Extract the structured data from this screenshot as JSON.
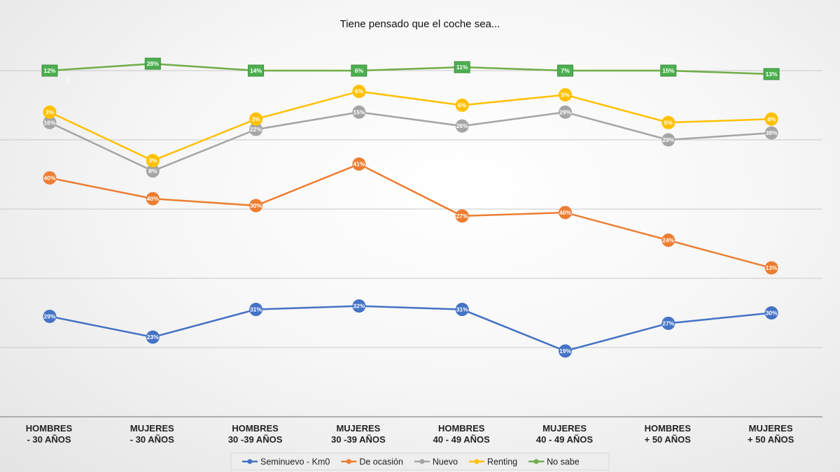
{
  "chart_data": {
    "type": "line",
    "stacked": true,
    "title": "Tiene pensado que el coche sea...",
    "categories": [
      [
        "HOMBRES",
        "- 30 AÑOS"
      ],
      [
        "MUJERES",
        "- 30 AÑOS"
      ],
      [
        "HOMBRES",
        "30 -39 AÑOS"
      ],
      [
        "MUJERES",
        "30 -39 AÑOS"
      ],
      [
        "HOMBRES",
        "40 - 49 AÑOS"
      ],
      [
        "MUJERES",
        "40 - 49 AÑOS"
      ],
      [
        "HOMBRES",
        "+ 50 AÑOS"
      ],
      [
        "MUJERES",
        "+ 50 AÑOS"
      ]
    ],
    "ylim": [
      0,
      100
    ],
    "yticks": [
      0,
      20,
      40,
      60,
      80,
      100
    ],
    "grid": true,
    "legend_position": "bottom",
    "series": [
      {
        "name": "Seminuevo - Km0",
        "color": "#4472C4",
        "marker": "circle",
        "values": [
          29,
          23,
          31,
          32,
          31,
          19,
          27,
          30
        ]
      },
      {
        "name": "De ocasión",
        "color": "#ED7D31",
        "marker": "circle",
        "values": [
          40,
          40,
          30,
          41,
          27,
          40,
          24,
          13
        ]
      },
      {
        "name": "Nuevo",
        "color": "#A5A5A5",
        "marker": "circle",
        "values": [
          16,
          8,
          22,
          15,
          26,
          29,
          29,
          39
        ]
      },
      {
        "name": "Renting",
        "color": "#FFC000",
        "marker": "circle",
        "values": [
          3,
          3,
          3,
          6,
          6,
          5,
          5,
          4
        ]
      },
      {
        "name": "No sabe",
        "color": "#70AD47",
        "marker": "square",
        "values": [
          12,
          28,
          14,
          6,
          11,
          7,
          15,
          13
        ]
      }
    ],
    "annotation": "0"
  }
}
